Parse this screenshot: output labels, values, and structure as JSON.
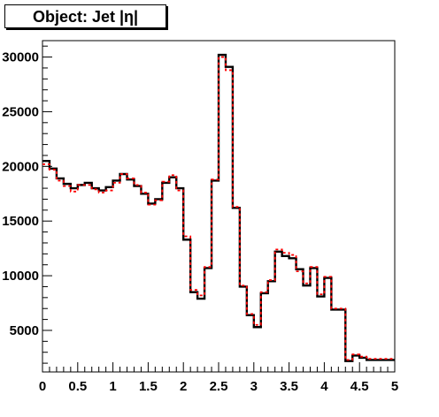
{
  "chart_data": {
    "type": "step",
    "title": "Object: Jet |η|",
    "xlabel": "",
    "ylabel": "",
    "xlim": [
      0,
      5
    ],
    "ylim": [
      1200,
      31500
    ],
    "xticks": [
      "0",
      "0.5",
      "1",
      "1.5",
      "2",
      "2.5",
      "3",
      "3.5",
      "4",
      "4.5",
      "5"
    ],
    "yticks": [
      "5000",
      "10000",
      "15000",
      "20000",
      "25000",
      "30000"
    ],
    "bin_edges": [
      0,
      0.1,
      0.2,
      0.3,
      0.4,
      0.5,
      0.6,
      0.7,
      0.8,
      0.9,
      1.0,
      1.1,
      1.2,
      1.3,
      1.4,
      1.5,
      1.6,
      1.7,
      1.8,
      1.9,
      2.0,
      2.1,
      2.2,
      2.3,
      2.4,
      2.5,
      2.6,
      2.7,
      2.8,
      2.9,
      3.0,
      3.1,
      3.2,
      3.3,
      3.4,
      3.5,
      3.6,
      3.7,
      3.8,
      3.9,
      4.0,
      4.1,
      4.2,
      4.3,
      4.4,
      4.5,
      4.6,
      4.7,
      4.8,
      4.9,
      5.0
    ],
    "series": [
      {
        "color": "#000000",
        "style": "solid",
        "values": [
          20500,
          19800,
          18900,
          18400,
          18000,
          18300,
          18500,
          18000,
          17800,
          18100,
          18700,
          19300,
          18800,
          18200,
          17500,
          16600,
          17000,
          18500,
          19000,
          18000,
          13300,
          8500,
          7900,
          10700,
          18700,
          30200,
          29100,
          16200,
          9000,
          6400,
          5300,
          8400,
          9500,
          12200,
          11800,
          11600,
          10600,
          9100,
          10700,
          8100,
          9800,
          6900,
          6900,
          2200,
          2700,
          2500,
          2300,
          2300,
          2300,
          2300
        ]
      },
      {
        "color": "#ff0000",
        "style": "dashed",
        "values": [
          20200,
          19700,
          18700,
          18200,
          17700,
          18300,
          18300,
          17900,
          17600,
          17800,
          18500,
          19300,
          18900,
          18300,
          17600,
          16500,
          16900,
          18600,
          19200,
          17800,
          13600,
          8700,
          8200,
          10800,
          18800,
          30000,
          28800,
          16300,
          9100,
          6500,
          5500,
          8500,
          9600,
          12400,
          12100,
          11900,
          10400,
          9300,
          10800,
          8300,
          9900,
          7000,
          7000,
          2300,
          2800,
          2600,
          2400,
          2400,
          2400,
          2400
        ]
      }
    ],
    "grid": false,
    "legend": "none"
  }
}
